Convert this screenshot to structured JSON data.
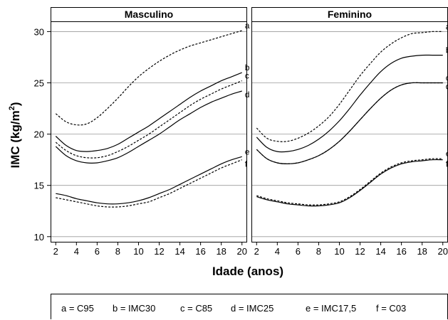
{
  "chart_data": {
    "type": "line",
    "ylabel": "IMC (kg/m²)",
    "xlabel": "Idade (anos)",
    "xlim": [
      1.5,
      20.5
    ],
    "ylim": [
      9.5,
      31
    ],
    "xticks": [
      2,
      4,
      6,
      8,
      10,
      12,
      14,
      16,
      18,
      20
    ],
    "yticks": [
      10,
      15,
      20,
      25,
      30
    ],
    "grid": "horizontal",
    "legend": [
      "a = C95",
      "b = IMC30",
      "c = C85",
      "d = IMC25",
      "e = IMC17,5",
      "f = C03"
    ],
    "panels": [
      {
        "title": "Masculino",
        "series": [
          {
            "label": "a",
            "style": "dashed",
            "x": [
              2,
              3,
              4,
              5,
              6,
              7,
              8,
              9,
              10,
              11,
              12,
              13,
              14,
              15,
              16,
              17,
              18,
              19,
              20
            ],
            "y": [
              22.0,
              21.2,
              20.9,
              21.0,
              21.6,
              22.5,
              23.5,
              24.6,
              25.6,
              26.4,
              27.1,
              27.7,
              28.2,
              28.6,
              28.9,
              29.2,
              29.5,
              29.8,
              30.1
            ]
          },
          {
            "label": "b",
            "style": "solid",
            "x": [
              2,
              3,
              4,
              5,
              6,
              7,
              8,
              9,
              10,
              11,
              12,
              13,
              14,
              15,
              16,
              17,
              18,
              19,
              20
            ],
            "y": [
              19.8,
              18.9,
              18.4,
              18.3,
              18.4,
              18.6,
              19.0,
              19.6,
              20.2,
              20.8,
              21.5,
              22.2,
              22.9,
              23.6,
              24.2,
              24.7,
              25.2,
              25.6,
              26.0
            ]
          },
          {
            "label": "c",
            "style": "dashed",
            "x": [
              2,
              3,
              4,
              5,
              6,
              7,
              8,
              9,
              10,
              11,
              12,
              13,
              14,
              15,
              16,
              17,
              18,
              19,
              20
            ],
            "y": [
              19.2,
              18.4,
              17.9,
              17.7,
              17.7,
              17.9,
              18.3,
              18.8,
              19.4,
              20.0,
              20.7,
              21.4,
              22.1,
              22.8,
              23.4,
              23.9,
              24.4,
              24.8,
              25.2
            ]
          },
          {
            "label": "d",
            "style": "solid",
            "x": [
              2,
              3,
              4,
              5,
              6,
              7,
              8,
              9,
              10,
              11,
              12,
              13,
              14,
              15,
              16,
              17,
              18,
              19,
              20
            ],
            "y": [
              18.8,
              17.9,
              17.4,
              17.2,
              17.2,
              17.4,
              17.7,
              18.2,
              18.8,
              19.4,
              20.0,
              20.7,
              21.4,
              22.0,
              22.6,
              23.1,
              23.5,
              23.9,
              24.2
            ]
          },
          {
            "label": "e",
            "style": "solid",
            "x": [
              2,
              3,
              4,
              5,
              6,
              7,
              8,
              9,
              10,
              11,
              12,
              13,
              14,
              15,
              16,
              17,
              18,
              19,
              20
            ],
            "y": [
              14.2,
              14.0,
              13.7,
              13.5,
              13.3,
              13.2,
              13.2,
              13.3,
              13.5,
              13.8,
              14.2,
              14.6,
              15.1,
              15.6,
              16.1,
              16.6,
              17.1,
              17.5,
              17.8
            ]
          },
          {
            "label": "f",
            "style": "dashed",
            "x": [
              2,
              3,
              4,
              5,
              6,
              7,
              8,
              9,
              10,
              11,
              12,
              13,
              14,
              15,
              16,
              17,
              18,
              19,
              20
            ],
            "y": [
              13.8,
              13.6,
              13.4,
              13.2,
              13.0,
              12.9,
              12.9,
              13.0,
              13.2,
              13.4,
              13.8,
              14.2,
              14.7,
              15.2,
              15.7,
              16.2,
              16.7,
              17.1,
              17.5
            ]
          }
        ]
      },
      {
        "title": "Feminino",
        "series": [
          {
            "label": "a",
            "style": "dashed",
            "x": [
              2,
              3,
              4,
              5,
              6,
              7,
              8,
              9,
              10,
              11,
              12,
              13,
              14,
              15,
              16,
              17,
              18,
              19,
              20
            ],
            "y": [
              20.6,
              19.6,
              19.3,
              19.3,
              19.6,
              20.1,
              20.8,
              21.7,
              22.9,
              24.3,
              25.7,
              26.9,
              28.0,
              28.8,
              29.4,
              29.8,
              29.9,
              30.0,
              30.0
            ]
          },
          {
            "label": "b",
            "style": "solid",
            "x": [
              2,
              3,
              4,
              5,
              6,
              7,
              8,
              9,
              10,
              11,
              12,
              13,
              14,
              15,
              16,
              17,
              18,
              19,
              20
            ],
            "y": [
              19.7,
              18.7,
              18.3,
              18.3,
              18.5,
              18.9,
              19.5,
              20.3,
              21.3,
              22.5,
              23.8,
              25.0,
              26.1,
              26.9,
              27.4,
              27.6,
              27.7,
              27.7,
              27.7
            ]
          },
          {
            "label": "c",
            "style": "dashed",
            "x": [
              2,
              3,
              4,
              5,
              6,
              7,
              8,
              9,
              10,
              11,
              12,
              13,
              14,
              15,
              16,
              17,
              18,
              19,
              20
            ],
            "y": [
              18.5,
              17.6,
              17.2,
              17.1,
              17.2,
              17.5,
              17.9,
              18.5,
              19.3,
              20.3,
              21.4,
              22.5,
              23.5,
              24.3,
              24.8,
              25.0,
              25.0,
              25.0,
              25.0
            ]
          },
          {
            "label": "d",
            "style": "solid",
            "x": [
              2,
              3,
              4,
              5,
              6,
              7,
              8,
              9,
              10,
              11,
              12,
              13,
              14,
              15,
              16,
              17,
              18,
              19,
              20
            ],
            "y": [
              18.5,
              17.6,
              17.2,
              17.1,
              17.2,
              17.5,
              17.9,
              18.5,
              19.3,
              20.3,
              21.4,
              22.5,
              23.5,
              24.3,
              24.8,
              25.0,
              25.0,
              25.0,
              25.0
            ]
          },
          {
            "label": "e",
            "style": "dashed",
            "x": [
              2,
              3,
              4,
              5,
              6,
              7,
              8,
              9,
              10,
              11,
              12,
              13,
              14,
              15,
              16,
              17,
              18,
              19,
              20
            ],
            "y": [
              14.0,
              13.7,
              13.5,
              13.3,
              13.2,
              13.1,
              13.1,
              13.2,
              13.4,
              13.9,
              14.6,
              15.4,
              16.2,
              16.8,
              17.2,
              17.4,
              17.5,
              17.6,
              17.6
            ]
          },
          {
            "label": "f",
            "style": "solid",
            "x": [
              2,
              3,
              4,
              5,
              6,
              7,
              8,
              9,
              10,
              11,
              12,
              13,
              14,
              15,
              16,
              17,
              18,
              19,
              20
            ],
            "y": [
              13.9,
              13.6,
              13.4,
              13.2,
              13.1,
              13.0,
              13.0,
              13.1,
              13.3,
              13.8,
              14.5,
              15.3,
              16.1,
              16.7,
              17.1,
              17.3,
              17.4,
              17.5,
              17.5
            ]
          }
        ]
      }
    ]
  }
}
